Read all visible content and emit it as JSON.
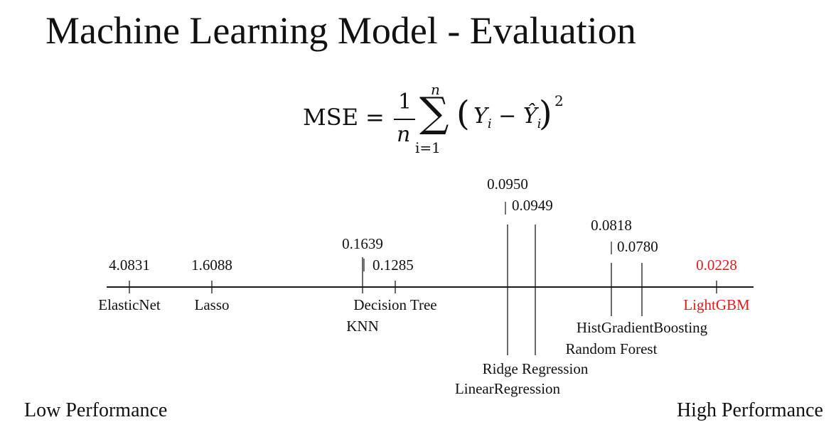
{
  "title": "Machine Learning Model - Evaluation",
  "formula": {
    "lhs": "MSE",
    "equals": "=",
    "one": "1",
    "n_denominator": "n",
    "sum_symbol": "∑",
    "sum_upper": "n",
    "sum_lower": "i=1",
    "term": "Y",
    "minus": "−",
    "hat_term": "Ŷ",
    "index": "i",
    "exponent": "2"
  },
  "chart_data": {
    "type": "scatter",
    "title": "",
    "xlabel": "",
    "ylabel": "",
    "points": [
      {
        "model": "ElasticNet",
        "mse": "4.0831",
        "highlight": false
      },
      {
        "model": "Lasso",
        "mse": "1.6088",
        "highlight": false
      },
      {
        "model": "Decision Tree",
        "mse": "0.1285",
        "highlight": false
      },
      {
        "model": "KNN",
        "mse": "0.1639",
        "highlight": false
      },
      {
        "model": "Ridge Regression",
        "mse": "0.0949",
        "highlight": false
      },
      {
        "model": "LinearRegression",
        "mse": "0.0950",
        "highlight": false
      },
      {
        "model": "HistGradientBoosting",
        "mse": "0.0780",
        "highlight": false
      },
      {
        "model": "Random Forest",
        "mse": "0.0818",
        "highlight": false
      },
      {
        "model": "LightGBM",
        "mse": "0.0228",
        "highlight": true
      }
    ],
    "highlight_color": "#e31a1c"
  },
  "footer": {
    "low": "Low Performance",
    "high": "High Performance"
  }
}
